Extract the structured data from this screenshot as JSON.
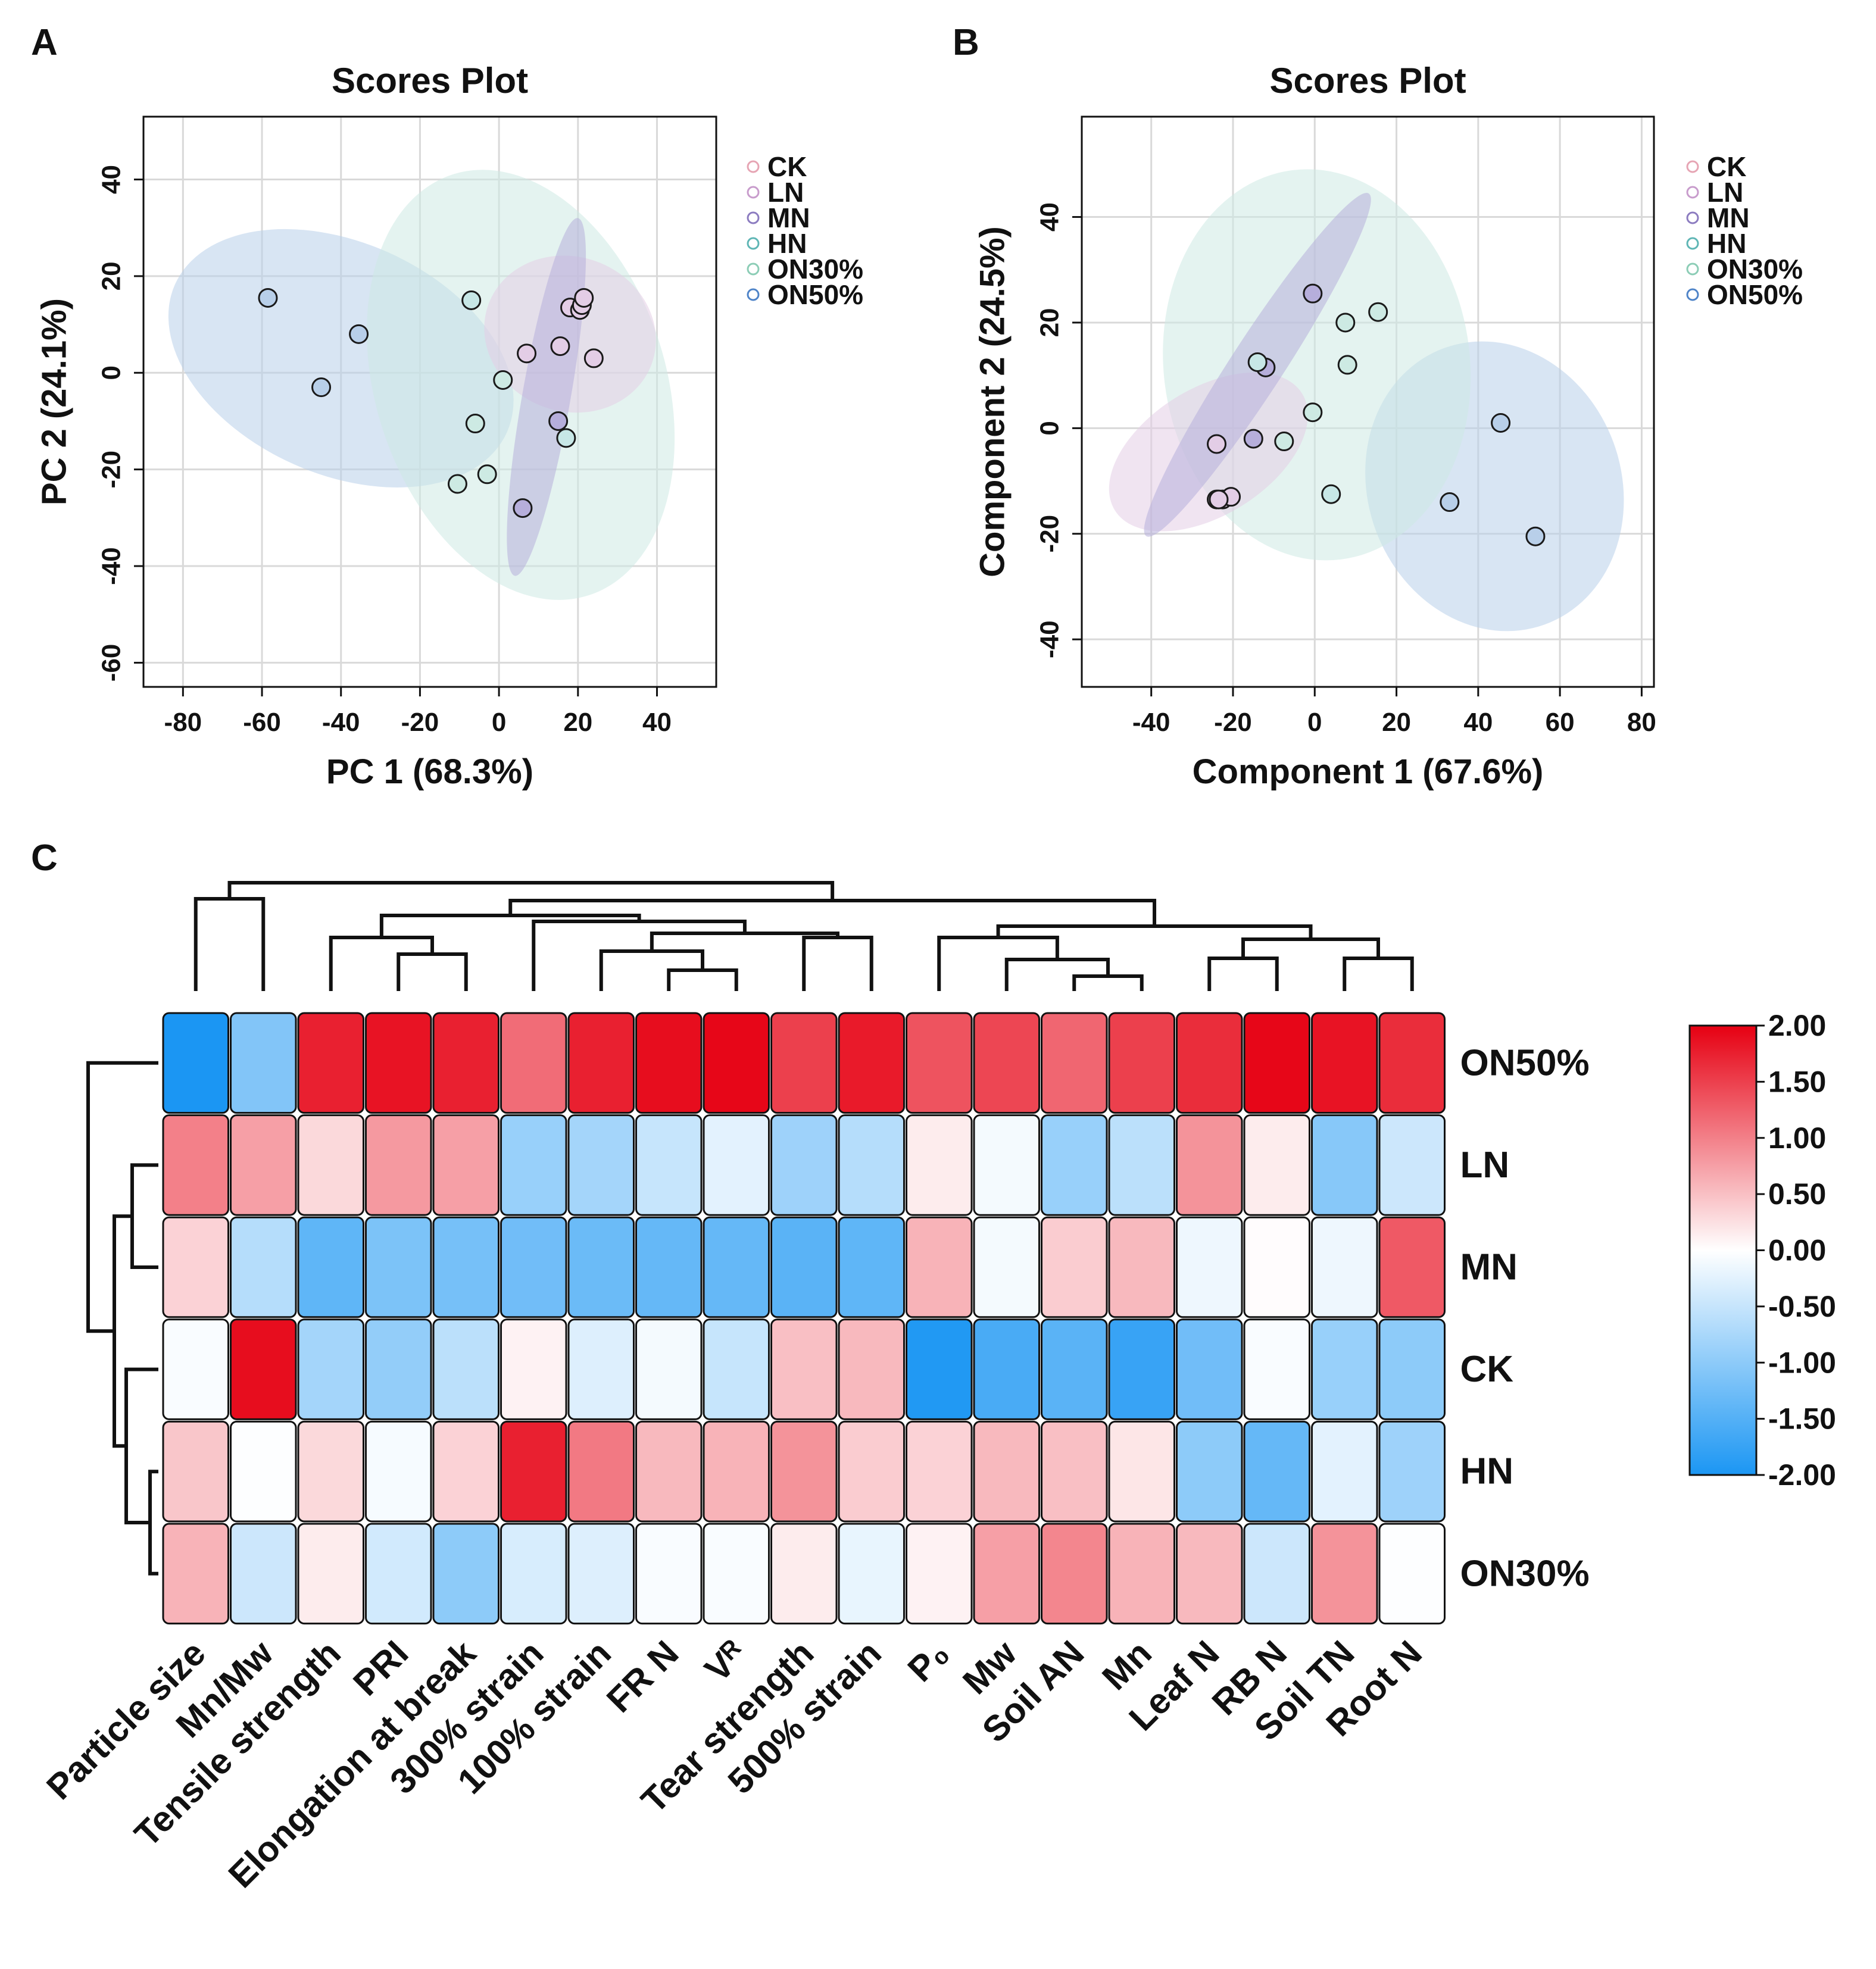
{
  "panels": [
    "A",
    "B",
    "C"
  ],
  "chart_data": [
    {
      "id": "A",
      "type": "scatter",
      "title": "Scores Plot",
      "xlabel": "PC 1 (68.3%)",
      "ylabel": "PC 2 (24.1%)",
      "xlim": [
        -90,
        55
      ],
      "ylim": [
        -65,
        53
      ],
      "xticks": [
        -80,
        -60,
        -40,
        -20,
        0,
        20,
        40
      ],
      "yticks": [
        -60,
        -40,
        -20,
        0,
        20,
        40
      ],
      "grid": true,
      "legend_position": "right",
      "groups": [
        {
          "name": "CK",
          "color": "#e6a5b4",
          "fill": "#e8aebc",
          "ellipse": {
            "cx": 0,
            "cy": 0,
            "rx": 0,
            "ry": 0,
            "angle": 0
          },
          "points": []
        },
        {
          "name": "LN",
          "color": "#c89ccc",
          "fill": "#e3cde6",
          "ellipse": {
            "cx": 18,
            "cy": 8,
            "rx": 22,
            "ry": 16,
            "angle": -20
          },
          "points": [
            [
              7,
              4
            ],
            [
              15.5,
              5.5
            ],
            [
              18,
              13.5
            ],
            [
              20.5,
              13
            ],
            [
              21,
              14
            ],
            [
              21.5,
              15.5
            ],
            [
              24,
              3
            ]
          ]
        },
        {
          "name": "MN",
          "color": "#8c7cc0",
          "fill": "#b6aedb",
          "ellipse": {
            "cx": 12,
            "cy": -5,
            "rx": 46,
            "ry": 5,
            "angle": 80
          },
          "points": [
            [
              15,
              -10
            ],
            [
              6,
              -28
            ]
          ]
        },
        {
          "name": "HN",
          "color": "#5fb6b5",
          "fill": "#c7e7e6",
          "ellipse": {
            "cx": 0,
            "cy": 0,
            "rx": 0,
            "ry": 0,
            "angle": 0
          },
          "points": [
            [
              -7,
              15
            ],
            [
              17,
              -13.5
            ]
          ]
        },
        {
          "name": "ON30%",
          "color": "#8ccdb6",
          "fill": "#cdeae3",
          "ellipse": {
            "cx": 5.5,
            "cy": -2.5,
            "rx": 56,
            "ry": 30,
            "angle": -72
          },
          "points": [
            [
              1,
              -1.5
            ],
            [
              -6,
              -10.5
            ],
            [
              -3,
              -21
            ],
            [
              -10.5,
              -23
            ]
          ]
        },
        {
          "name": "ON50%",
          "color": "#4f84c8",
          "fill": "#b8cfe9",
          "ellipse": {
            "cx": -40,
            "cy": 3,
            "rx": 46,
            "ry": 24,
            "angle": -24
          },
          "points": [
            [
              -58.5,
              15.5
            ],
            [
              -35.5,
              8
            ],
            [
              -45,
              -3
            ]
          ]
        }
      ]
    },
    {
      "id": "B",
      "type": "scatter",
      "title": "Scores Plot",
      "xlabel": "Component 1 (67.6%)",
      "ylabel": "Component 2 (24.5%)",
      "xlim": [
        -57,
        83
      ],
      "ylim": [
        -49,
        59
      ],
      "xticks": [
        -40,
        -20,
        0,
        20,
        40,
        60,
        80
      ],
      "yticks": [
        -40,
        -20,
        0,
        20,
        40
      ],
      "grid": true,
      "legend_position": "right",
      "groups": [
        {
          "name": "CK",
          "color": "#e6a5b4",
          "fill": "#e8aebc",
          "ellipse": {
            "cx": 0,
            "cy": 0,
            "rx": 0,
            "ry": 0,
            "angle": 0
          },
          "points": []
        },
        {
          "name": "LN",
          "color": "#c89ccc",
          "fill": "#e3cde6",
          "ellipse": {
            "cx": -26,
            "cy": -4.5,
            "rx": 27,
            "ry": 12,
            "angle": 32
          },
          "points": [
            [
              -24,
              -3
            ],
            [
              -24,
              -13.5
            ],
            [
              -22.5,
              -13.5
            ],
            [
              -20.5,
              -13
            ],
            [
              -23.5,
              -13.5
            ]
          ]
        },
        {
          "name": "MN",
          "color": "#8c7cc0",
          "fill": "#b6aedb",
          "ellipse": {
            "cx": -14,
            "cy": 12,
            "rx": 50,
            "ry": 5,
            "angle": 57
          },
          "points": [
            [
              -15,
              -2
            ],
            [
              -12,
              11.5
            ],
            [
              -0.5,
              25.5
            ]
          ]
        },
        {
          "name": "HN",
          "color": "#5fb6b5",
          "fill": "#c7e7e6",
          "ellipse": {
            "cx": 0,
            "cy": 0,
            "rx": 0,
            "ry": 0,
            "angle": 0
          },
          "points": [
            [
              -14,
              12.5
            ],
            [
              4,
              -12.5
            ]
          ]
        },
        {
          "name": "ON30%",
          "color": "#8ccdb6",
          "fill": "#cdeae3",
          "ellipse": {
            "cx": 0.5,
            "cy": 12,
            "rx": 48,
            "ry": 29,
            "angle": -83
          },
          "points": [
            [
              -7.5,
              -2.5
            ],
            [
              -0.5,
              3
            ],
            [
              8,
              12
            ],
            [
              7.5,
              20
            ],
            [
              15.5,
              22
            ]
          ]
        },
        {
          "name": "ON50%",
          "color": "#4f84c8",
          "fill": "#b8cfe9",
          "ellipse": {
            "cx": 44,
            "cy": -11,
            "rx": 36,
            "ry": 24,
            "angle": -70
          },
          "points": [
            [
              45.5,
              1
            ],
            [
              33,
              -14
            ],
            [
              54,
              -20.5
            ]
          ]
        }
      ]
    },
    {
      "id": "C",
      "type": "heatmap",
      "columns": [
        "Particle size",
        "Mn/Mw",
        "Tensile strength",
        "PRI",
        "Elongation at break",
        "300% strain",
        "100% strain",
        "FR N",
        "Vᴿ",
        "Tear strength",
        "500% strain",
        "P₀",
        "Mw",
        "Soil AN",
        "Mn",
        "Leaf N",
        "RB N",
        "Soil TN",
        "Root N"
      ],
      "rows": [
        "ON50%",
        "LN",
        "MN",
        "CK",
        "HN",
        "ON30%"
      ],
      "values": [
        [
          -2.0,
          -1.1,
          1.75,
          1.85,
          1.75,
          1.15,
          1.75,
          1.9,
          1.95,
          1.5,
          1.8,
          1.35,
          1.45,
          1.2,
          1.5,
          1.65,
          1.95,
          1.85,
          1.65
        ],
        [
          1.0,
          0.75,
          0.3,
          0.8,
          0.75,
          -0.9,
          -0.8,
          -0.5,
          -0.25,
          -0.85,
          -0.65,
          0.15,
          -0.1,
          -0.9,
          -0.6,
          0.85,
          0.15,
          -1.05,
          -0.45
        ],
        [
          0.35,
          -0.65,
          -1.4,
          -1.15,
          -1.2,
          -1.25,
          -1.3,
          -1.35,
          -1.35,
          -1.45,
          -1.4,
          0.6,
          -0.1,
          0.4,
          0.55,
          -0.15,
          0.02,
          -0.15,
          1.3
        ],
        [
          -0.05,
          1.9,
          -0.8,
          -0.95,
          -0.6,
          0.1,
          -0.3,
          -0.1,
          -0.5,
          0.5,
          0.55,
          -1.95,
          -1.6,
          -1.45,
          -1.75,
          -1.25,
          -0.05,
          -0.9,
          -1.0
        ],
        [
          0.45,
          -0.02,
          0.3,
          -0.08,
          0.35,
          1.75,
          1.05,
          0.55,
          0.6,
          0.85,
          0.4,
          0.35,
          0.55,
          0.5,
          0.2,
          -1.0,
          -1.35,
          -0.25,
          -0.85
        ],
        [
          0.6,
          -0.45,
          0.15,
          -0.4,
          -1.0,
          -0.35,
          -0.3,
          -0.05,
          -0.05,
          0.15,
          -0.2,
          0.1,
          0.75,
          0.95,
          0.6,
          0.55,
          -0.45,
          0.85,
          -0.02
        ]
      ],
      "scale": {
        "min": -2.0,
        "max": 2.0,
        "low_color": "#1b96f3",
        "mid_color": "#ffffff",
        "high_color": "#e60012"
      },
      "colorbar_ticks": [
        "2.00",
        "1.50",
        "1.00",
        "0.50",
        "0.00",
        "-0.50",
        "-1.00",
        "-1.50",
        "-2.00"
      ],
      "column_dendrogram_order": [
        "Particle size",
        "Mn/Mw",
        "Tensile strength",
        "PRI",
        "Elongation at break",
        "300% strain",
        "100% strain",
        "FR N",
        "Vᴿ",
        "Tear strength",
        "500% strain",
        "P₀",
        "Mw",
        "Soil AN",
        "Mn",
        "Leaf N",
        "RB N",
        "Soil TN",
        "Root N"
      ],
      "row_dendrogram_order": [
        "ON50%",
        "LN",
        "MN",
        "CK",
        "HN",
        "ON30%"
      ]
    }
  ]
}
